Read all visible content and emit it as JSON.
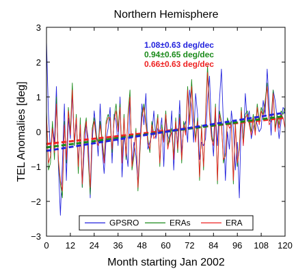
{
  "chart_data": {
    "type": "line",
    "title": "Northern Hemisphere",
    "xlabel": "Month starting Jan 2002",
    "ylabel": "TEL Anomalies [deg]",
    "xlim": [
      0,
      120
    ],
    "ylim": [
      -3,
      3
    ],
    "xticks": [
      0,
      12,
      24,
      36,
      48,
      60,
      72,
      84,
      96,
      108,
      120
    ],
    "yticks": [
      -3,
      -2,
      -1,
      0,
      1,
      2,
      3
    ],
    "grid": false,
    "legend_position": "bottom",
    "series": [
      {
        "name": "GPSRO",
        "color": "#2222dd",
        "trend_label": "1.08±0.63 deg/dec",
        "trend": [
          -0.55,
          0.55
        ],
        "values": [
          2.6,
          0.5,
          -0.6,
          0.2,
          -0.3,
          1.3,
          -1.0,
          -2.4,
          -0.9,
          0.8,
          -1.4,
          0.4,
          -0.2,
          1.1,
          -0.4,
          0.3,
          -0.9,
          0.1,
          -1.6,
          -0.5,
          0.2,
          -0.2,
          -1.9,
          -0.3,
          0.6,
          0.0,
          -0.7,
          0.8,
          -0.5,
          -1.2,
          -0.2,
          0.1,
          0.7,
          -0.9,
          0.5,
          0.3,
          -0.4,
          1.0,
          -1.3,
          -0.1,
          -0.5,
          -1.0,
          1.0,
          -0.9,
          -0.3,
          -0.7,
          -1.5,
          -0.4,
          0.8,
          0.2,
          1.1,
          -0.5,
          -0.3,
          -0.1,
          0.6,
          -0.2,
          0.1,
          0.0,
          0.4,
          -1.0,
          0.5,
          -0.1,
          -0.3,
          0.6,
          -1.1,
          0.2,
          -0.4,
          0.9,
          -0.6,
          0.1,
          0.3,
          -0.3,
          1.2,
          0.7,
          -0.3,
          1.1,
          0.5,
          -0.8,
          -0.3,
          -0.4,
          -0.2,
          0.9,
          1.6,
          0.1,
          -0.7,
          0.5,
          -0.4,
          0.9,
          1.8,
          0.2,
          -1.4,
          0.0,
          -0.5,
          0.6,
          0.1,
          -1.1,
          -0.3,
          -1.9,
          0.5,
          -0.4,
          1.1,
          0.3,
          0.6,
          -0.2,
          0.1,
          0.4,
          0.2,
          0.0,
          0.1,
          0.9,
          0.5,
          1.8,
          0.8,
          -0.1,
          1.2,
          0.9,
          0.4,
          -0.2,
          0.3,
          0.7,
          0.6
        ]
      },
      {
        "name": "ERAs",
        "color": "#1a8a1a",
        "trend_label": "0.94±0.65 deg/dec",
        "trend": [
          -0.45,
          0.45
        ],
        "values": [
          0.6,
          -1.1,
          -0.9,
          0.3,
          -0.8,
          1.0,
          -0.9,
          -1.5,
          -1.9,
          0.3,
          -0.9,
          0.7,
          0.0,
          1.4,
          -0.4,
          0.5,
          -1.2,
          0.4,
          -1.6,
          0.0,
          0.4,
          -0.8,
          -1.8,
          0.1,
          0.4,
          -0.1,
          -0.3,
          0.3,
          -0.2,
          -0.8,
          0.3,
          0.5,
          0.3,
          -0.6,
          0.4,
          0.8,
          0.1,
          0.8,
          -0.8,
          0.5,
          -0.8,
          0.5,
          1.2,
          -1.1,
          -0.7,
          0.1,
          -1.7,
          -0.6,
          0.5,
          0.8,
          0.3,
          -0.2,
          -0.6,
          0.3,
          -0.1,
          0.0,
          0.5,
          -1.0,
          0.2,
          -0.2,
          0.6,
          -0.4,
          -0.1,
          0.1,
          -0.7,
          0.4,
          -0.6,
          0.5,
          -0.9,
          0.3,
          0.0,
          1.3,
          0.3,
          1.5,
          0.4,
          -0.2,
          0.4,
          -1.4,
          0.2,
          -1.1,
          0.5,
          1.9,
          0.6,
          -0.1,
          -0.3,
          0.8,
          -1.5,
          0.6,
          0.3,
          -0.9,
          -0.6,
          0.4,
          0.2,
          0.3,
          -1.5,
          0.3,
          -1.0,
          -0.4,
          0.7,
          -0.3,
          0.5,
          0.6,
          0.3,
          0.0,
          0.5,
          0.0,
          0.8,
          0.3,
          0.7,
          0.5,
          0.9,
          1.4,
          0.3,
          0.4,
          1.2,
          0.1,
          0.5,
          0.2,
          0.6,
          0.5,
          0.7
        ]
      },
      {
        "name": "ERA",
        "color": "#ee2222",
        "trend_label": "0.66±0.63 deg/dec",
        "trend": [
          -0.35,
          0.4
        ],
        "values": [
          0.5,
          -0.9,
          -0.7,
          0.1,
          -0.6,
          0.8,
          -0.8,
          -1.4,
          -1.7,
          0.2,
          -0.8,
          0.6,
          -0.1,
          1.2,
          -0.3,
          0.4,
          -1.0,
          0.2,
          -1.5,
          -0.1,
          0.3,
          -0.7,
          -1.6,
          0.0,
          0.3,
          -0.2,
          -0.4,
          0.2,
          -0.3,
          -0.9,
          0.2,
          0.4,
          0.4,
          -0.5,
          0.3,
          0.6,
          0.0,
          0.7,
          -0.9,
          0.4,
          -0.7,
          0.4,
          1.0,
          -1.0,
          -0.6,
          0.0,
          -1.6,
          -0.5,
          0.4,
          0.7,
          0.2,
          -0.3,
          -0.5,
          0.2,
          -0.2,
          -0.1,
          0.4,
          -0.9,
          0.1,
          -0.3,
          0.5,
          -0.5,
          -0.2,
          0.0,
          -0.8,
          0.3,
          -0.5,
          0.4,
          -0.8,
          0.2,
          -0.1,
          1.2,
          0.2,
          1.3,
          0.3,
          -0.3,
          0.3,
          -1.3,
          0.1,
          -1.0,
          0.4,
          1.7,
          0.5,
          -0.2,
          -0.4,
          0.7,
          -1.4,
          0.5,
          0.2,
          -0.8,
          -0.7,
          0.3,
          0.1,
          0.2,
          -1.4,
          0.2,
          -0.9,
          -0.5,
          0.6,
          -0.4,
          0.4,
          0.5,
          0.2,
          -0.1,
          0.4,
          -0.1,
          0.7,
          0.2,
          0.6,
          0.4,
          0.8,
          1.3,
          0.2,
          0.3,
          1.1,
          0.0,
          0.4,
          0.1,
          0.5,
          0.4,
          0.1
        ]
      }
    ]
  }
}
